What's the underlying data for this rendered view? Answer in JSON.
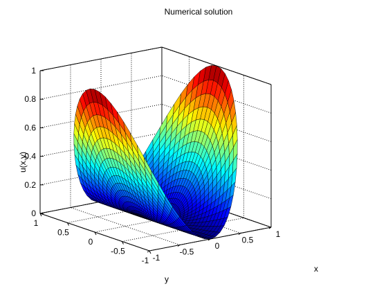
{
  "chart_data": {
    "type": "surface3d",
    "title": "Numerical solution",
    "xlabel": "x",
    "ylabel": "y",
    "zlabel": "u(x,y)",
    "xlim": [
      -1,
      1
    ],
    "ylim": [
      -1,
      1
    ],
    "zlim": [
      0,
      1
    ],
    "xticks": [
      "-1",
      "-0.5",
      "0",
      "0.5",
      "1"
    ],
    "yticks": [
      "1",
      "0.5",
      "0",
      "-0.5",
      "-1"
    ],
    "zticks": [
      "0",
      "0.2",
      "0.4",
      "0.6",
      "0.8",
      "1"
    ],
    "domain": "unit disk, polar grid",
    "surface_samples": [
      {
        "x": -1.0,
        "y": 0.0,
        "u": 1.0
      },
      {
        "x": 1.0,
        "y": 0.0,
        "u": 1.0
      },
      {
        "x": 0.0,
        "y": 1.0,
        "u": 0.0
      },
      {
        "x": 0.0,
        "y": -1.0,
        "u": 0.0
      },
      {
        "x": 0.707,
        "y": 0.707,
        "u": 0.5
      },
      {
        "x": -0.707,
        "y": -0.707,
        "u": 0.5
      },
      {
        "x": 0.0,
        "y": 0.0,
        "u": 0.0
      }
    ],
    "colormap": "jet",
    "grid": true,
    "box": "on"
  }
}
